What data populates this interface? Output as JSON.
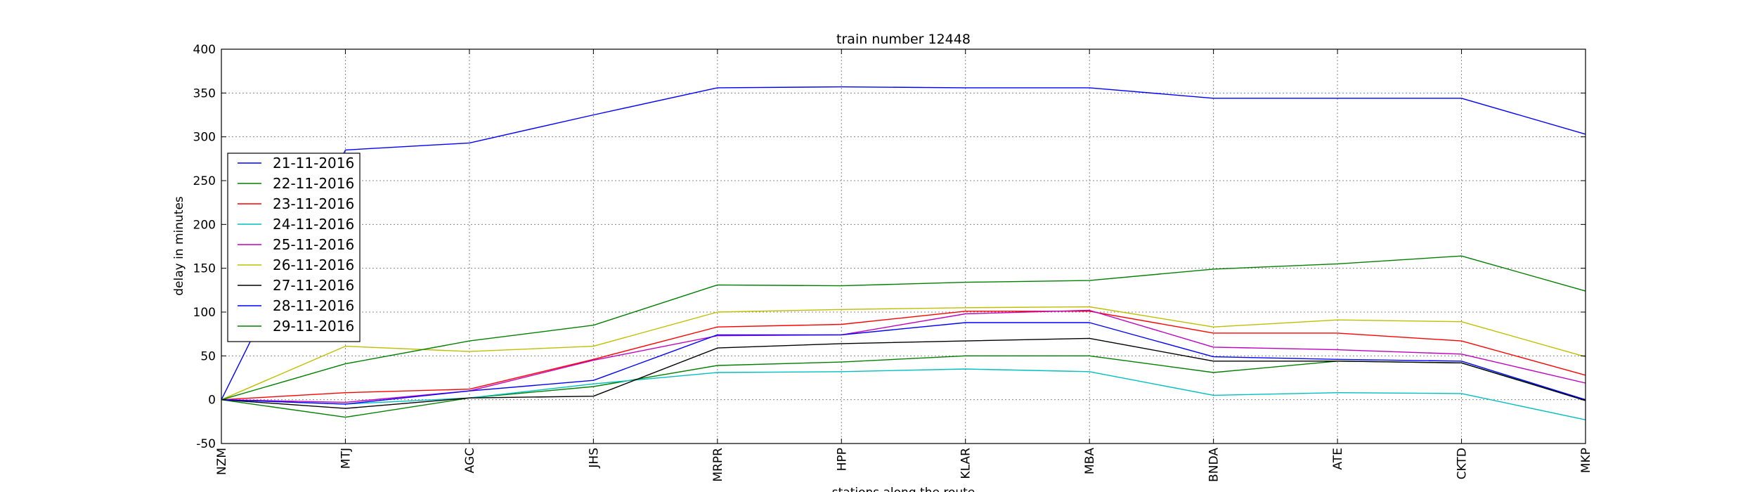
{
  "chart_data": {
    "type": "line",
    "title": "train number 12448",
    "xlabel": "stations along the route",
    "ylabel": "delay in minutes",
    "categories": [
      "NZM",
      "MTJ",
      "AGC",
      "JHS",
      "MRPR",
      "HPP",
      "KLAR",
      "MBA",
      "BNDA",
      "ATE",
      "CKTD",
      "MKP"
    ],
    "ylim": [
      -50,
      400
    ],
    "yticks": [
      -50,
      0,
      50,
      100,
      150,
      200,
      250,
      300,
      350,
      400
    ],
    "grid": true,
    "legend_position": "center-left",
    "series": [
      {
        "name": "21-11-2016",
        "color": "#0000ff",
        "values": [
          0,
          285,
          293,
          325,
          356,
          357,
          356,
          356,
          344,
          344,
          344,
          303
        ]
      },
      {
        "name": "22-11-2016",
        "color": "#008000",
        "values": [
          0,
          -20,
          2,
          15,
          39,
          43,
          50,
          50,
          31,
          44,
          42,
          0
        ]
      },
      {
        "name": "23-11-2016",
        "color": "#ff0000",
        "values": [
          0,
          8,
          12,
          46,
          83,
          86,
          101,
          101,
          76,
          76,
          67,
          28
        ]
      },
      {
        "name": "24-11-2016",
        "color": "#00bfbf",
        "values": [
          0,
          -5,
          2,
          18,
          31,
          32,
          35,
          32,
          5,
          8,
          7,
          -23
        ]
      },
      {
        "name": "25-11-2016",
        "color": "#bf00bf",
        "values": [
          0,
          -3,
          10,
          45,
          73,
          74,
          98,
          102,
          60,
          57,
          52,
          19
        ]
      },
      {
        "name": "26-11-2016",
        "color": "#bfbf00",
        "values": [
          0,
          61,
          55,
          61,
          100,
          103,
          105,
          106,
          83,
          91,
          89,
          49
        ]
      },
      {
        "name": "27-11-2016",
        "color": "#000000",
        "values": [
          0,
          -10,
          2,
          4,
          59,
          64,
          67,
          70,
          44,
          44,
          42,
          -1
        ]
      },
      {
        "name": "28-11-2016",
        "color": "#0000ff",
        "values": [
          0,
          -5,
          10,
          22,
          74,
          74,
          88,
          88,
          49,
          46,
          44,
          0
        ]
      },
      {
        "name": "29-11-2016",
        "color": "#008000",
        "values": [
          0,
          41,
          67,
          85,
          131,
          130,
          134,
          136,
          149,
          155,
          164,
          124
        ]
      }
    ]
  }
}
